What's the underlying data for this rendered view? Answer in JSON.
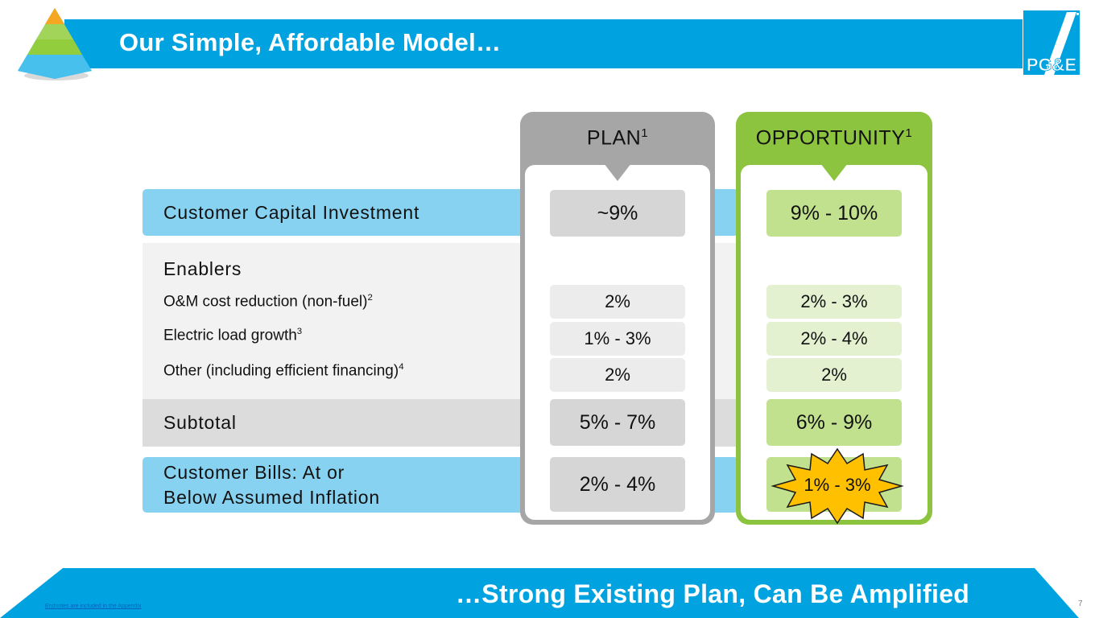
{
  "header": {
    "title": "Our Simple, Affordable Model…"
  },
  "logo": {
    "text": "PG&E",
    "brand_color": "#00a3e0",
    "accent_color": "#f5a623"
  },
  "columns": {
    "plan": {
      "label": "PLAN",
      "footnote": "1"
    },
    "opportunity": {
      "label": "OPPORTUNITY",
      "footnote": "1"
    }
  },
  "rows": {
    "capital": {
      "label": "Customer Capital Investment",
      "plan": "~9%",
      "opportunity": "9% - 10%"
    },
    "enablers": {
      "label": "Enablers"
    },
    "om": {
      "label": "O&M cost reduction (non-fuel)",
      "footnote": "2",
      "plan": "2%",
      "opportunity": "2% - 3%"
    },
    "load": {
      "label": "Electric load growth",
      "footnote": "3",
      "plan": "1% - 3%",
      "opportunity": "2% - 4%"
    },
    "other": {
      "label": "Other (including efficient financing)",
      "footnote": "4",
      "plan": "2%",
      "opportunity": "2%"
    },
    "subtotal": {
      "label": "Subtotal",
      "plan": "5% - 7%",
      "opportunity": "6% - 9%"
    },
    "bills": {
      "label_line1": "Customer Bills: At or",
      "label_line2": "Below Assumed Inflation",
      "plan": "2% - 4%",
      "opportunity": "1% - 3%"
    }
  },
  "footer": {
    "tagline": "…Strong Existing Plan, Can Be Amplified",
    "endnote_link": "Endnotes are included in the Appendix",
    "page_number": "7"
  },
  "colors": {
    "header_blue": "#00a3e0",
    "band_blue": "#87d2f0",
    "plan_grey": "#a6a6a6",
    "opportunity_green": "#8dc43f",
    "starburst": "#ffc000"
  }
}
